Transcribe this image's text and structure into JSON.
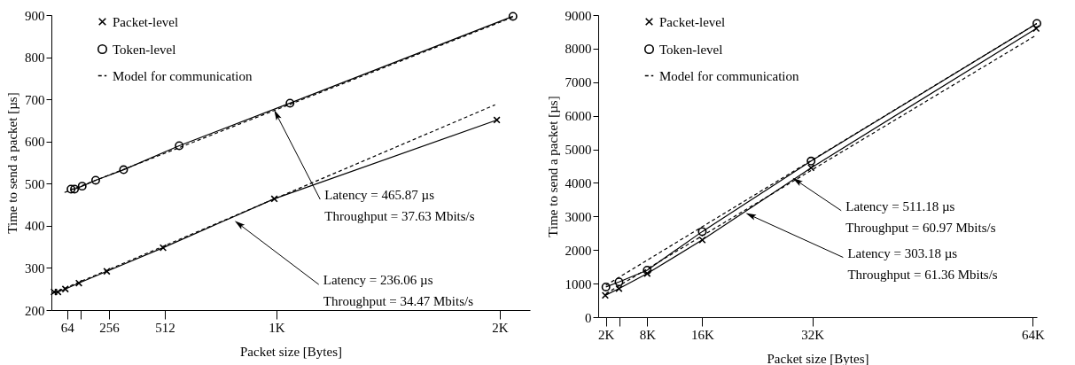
{
  "chart_data": [
    {
      "type": "line",
      "xlabel": "Packet size [Bytes]",
      "ylabel": "Time to send a packet [µs]",
      "xlim": [
        -8,
        2186
      ],
      "ylim": [
        200,
        900
      ],
      "xticks": [
        {
          "value": 64,
          "label": "64"
        },
        {
          "value": 128,
          "label": null
        },
        {
          "value": 256,
          "label": "256"
        },
        {
          "value": 512,
          "label": "512"
        },
        {
          "value": 1024,
          "label": "1K"
        },
        {
          "value": 2048,
          "label": "2K"
        }
      ],
      "yticks": [
        200,
        300,
        400,
        500,
        600,
        700,
        800,
        900
      ],
      "legend": "top left",
      "series": [
        {
          "name": "Packet-level",
          "color": "#000000",
          "marker": "cross",
          "line_style": "solid",
          "x": [
            4,
            22,
            56,
            118,
            246,
            504,
            1014,
            2034
          ],
          "values": [
            243,
            243,
            250,
            264,
            292,
            348,
            464,
            651
          ]
        },
        {
          "name": "Token-level",
          "color": "#000000",
          "marker": "circle",
          "line_style": "solid",
          "x": [
            82,
            98,
            133,
            195,
            323,
            578,
            1086,
            2108
          ],
          "values": [
            487,
            487,
            494,
            508,
            533,
            590,
            691,
            897
          ]
        },
        {
          "name": "Model for communication",
          "color": "#000000",
          "marker": "none",
          "line_style": "dashed",
          "x": [
            0,
            2026
          ],
          "values": [
            240,
            687
          ]
        },
        {
          "color": "#000000",
          "marker": "none",
          "line_style": "dashed",
          "x": [
            52,
            2108
          ],
          "values": [
            479,
            895
          ]
        }
      ],
      "annotations": [
        {
          "text": "Latency = 465.87 µs\nThroughput = 37.63 Mbits/s",
          "x": 1013,
          "y": 675
        },
        {
          "text": "Latency = 236.06 µs\nThroughput = 34.47 Mbits/s",
          "x": 832,
          "y": 412
        }
      ]
    },
    {
      "type": "line",
      "xlabel": "Packet size [Bytes]",
      "ylabel": "Time to send a packet [µs]",
      "xlim": [
        0.88,
        64.6
      ],
      "ylim": [
        0,
        9000
      ],
      "xticks": [
        {
          "value": 2,
          "label": "2K"
        },
        {
          "value": 4,
          "label": null
        },
        {
          "value": 8,
          "label": "8K"
        },
        {
          "value": 16,
          "label": "16K"
        },
        {
          "value": 32,
          "label": "32K"
        },
        {
          "value": 64,
          "label": "64K"
        }
      ],
      "yticks": [
        0,
        1000,
        2000,
        3000,
        4000,
        5000,
        6000,
        7000,
        8000,
        9000
      ],
      "legend": "top left",
      "series": [
        {
          "name": "Packet-level",
          "color": "#000000",
          "marker": "cross",
          "line_style": "solid",
          "x": [
            1.9,
            3.9,
            8,
            16,
            31.8,
            64.5
          ],
          "values": [
            650,
            850,
            1300,
            2300,
            4450,
            8600
          ]
        },
        {
          "name": "Token-level",
          "color": "#000000",
          "marker": "circle",
          "line_style": "solid",
          "x": [
            2,
            3.9,
            8,
            16,
            31.8,
            64.6
          ],
          "values": [
            900,
            1050,
            1400,
            2550,
            4650,
            8750
          ]
        },
        {
          "name": "Model for communication",
          "color": "#000000",
          "marker": "none",
          "line_style": "dashed",
          "x": [
            2,
            64.5
          ],
          "values": [
            700,
            8400
          ]
        },
        {
          "color": "#000000",
          "marker": "none",
          "line_style": "dashed",
          "x": [
            2,
            64.6
          ],
          "values": [
            950,
            8750
          ]
        }
      ],
      "annotations": [
        {
          "text": "Latency = 511.18 µs\nThroughput = 60.97 Mbits/s",
          "x": 29.1,
          "y": 4150
        },
        {
          "text": "Latency = 303.18 µs\nThroughput = 61.36 Mbits/s",
          "x": 22.3,
          "y": 3100
        }
      ]
    }
  ]
}
